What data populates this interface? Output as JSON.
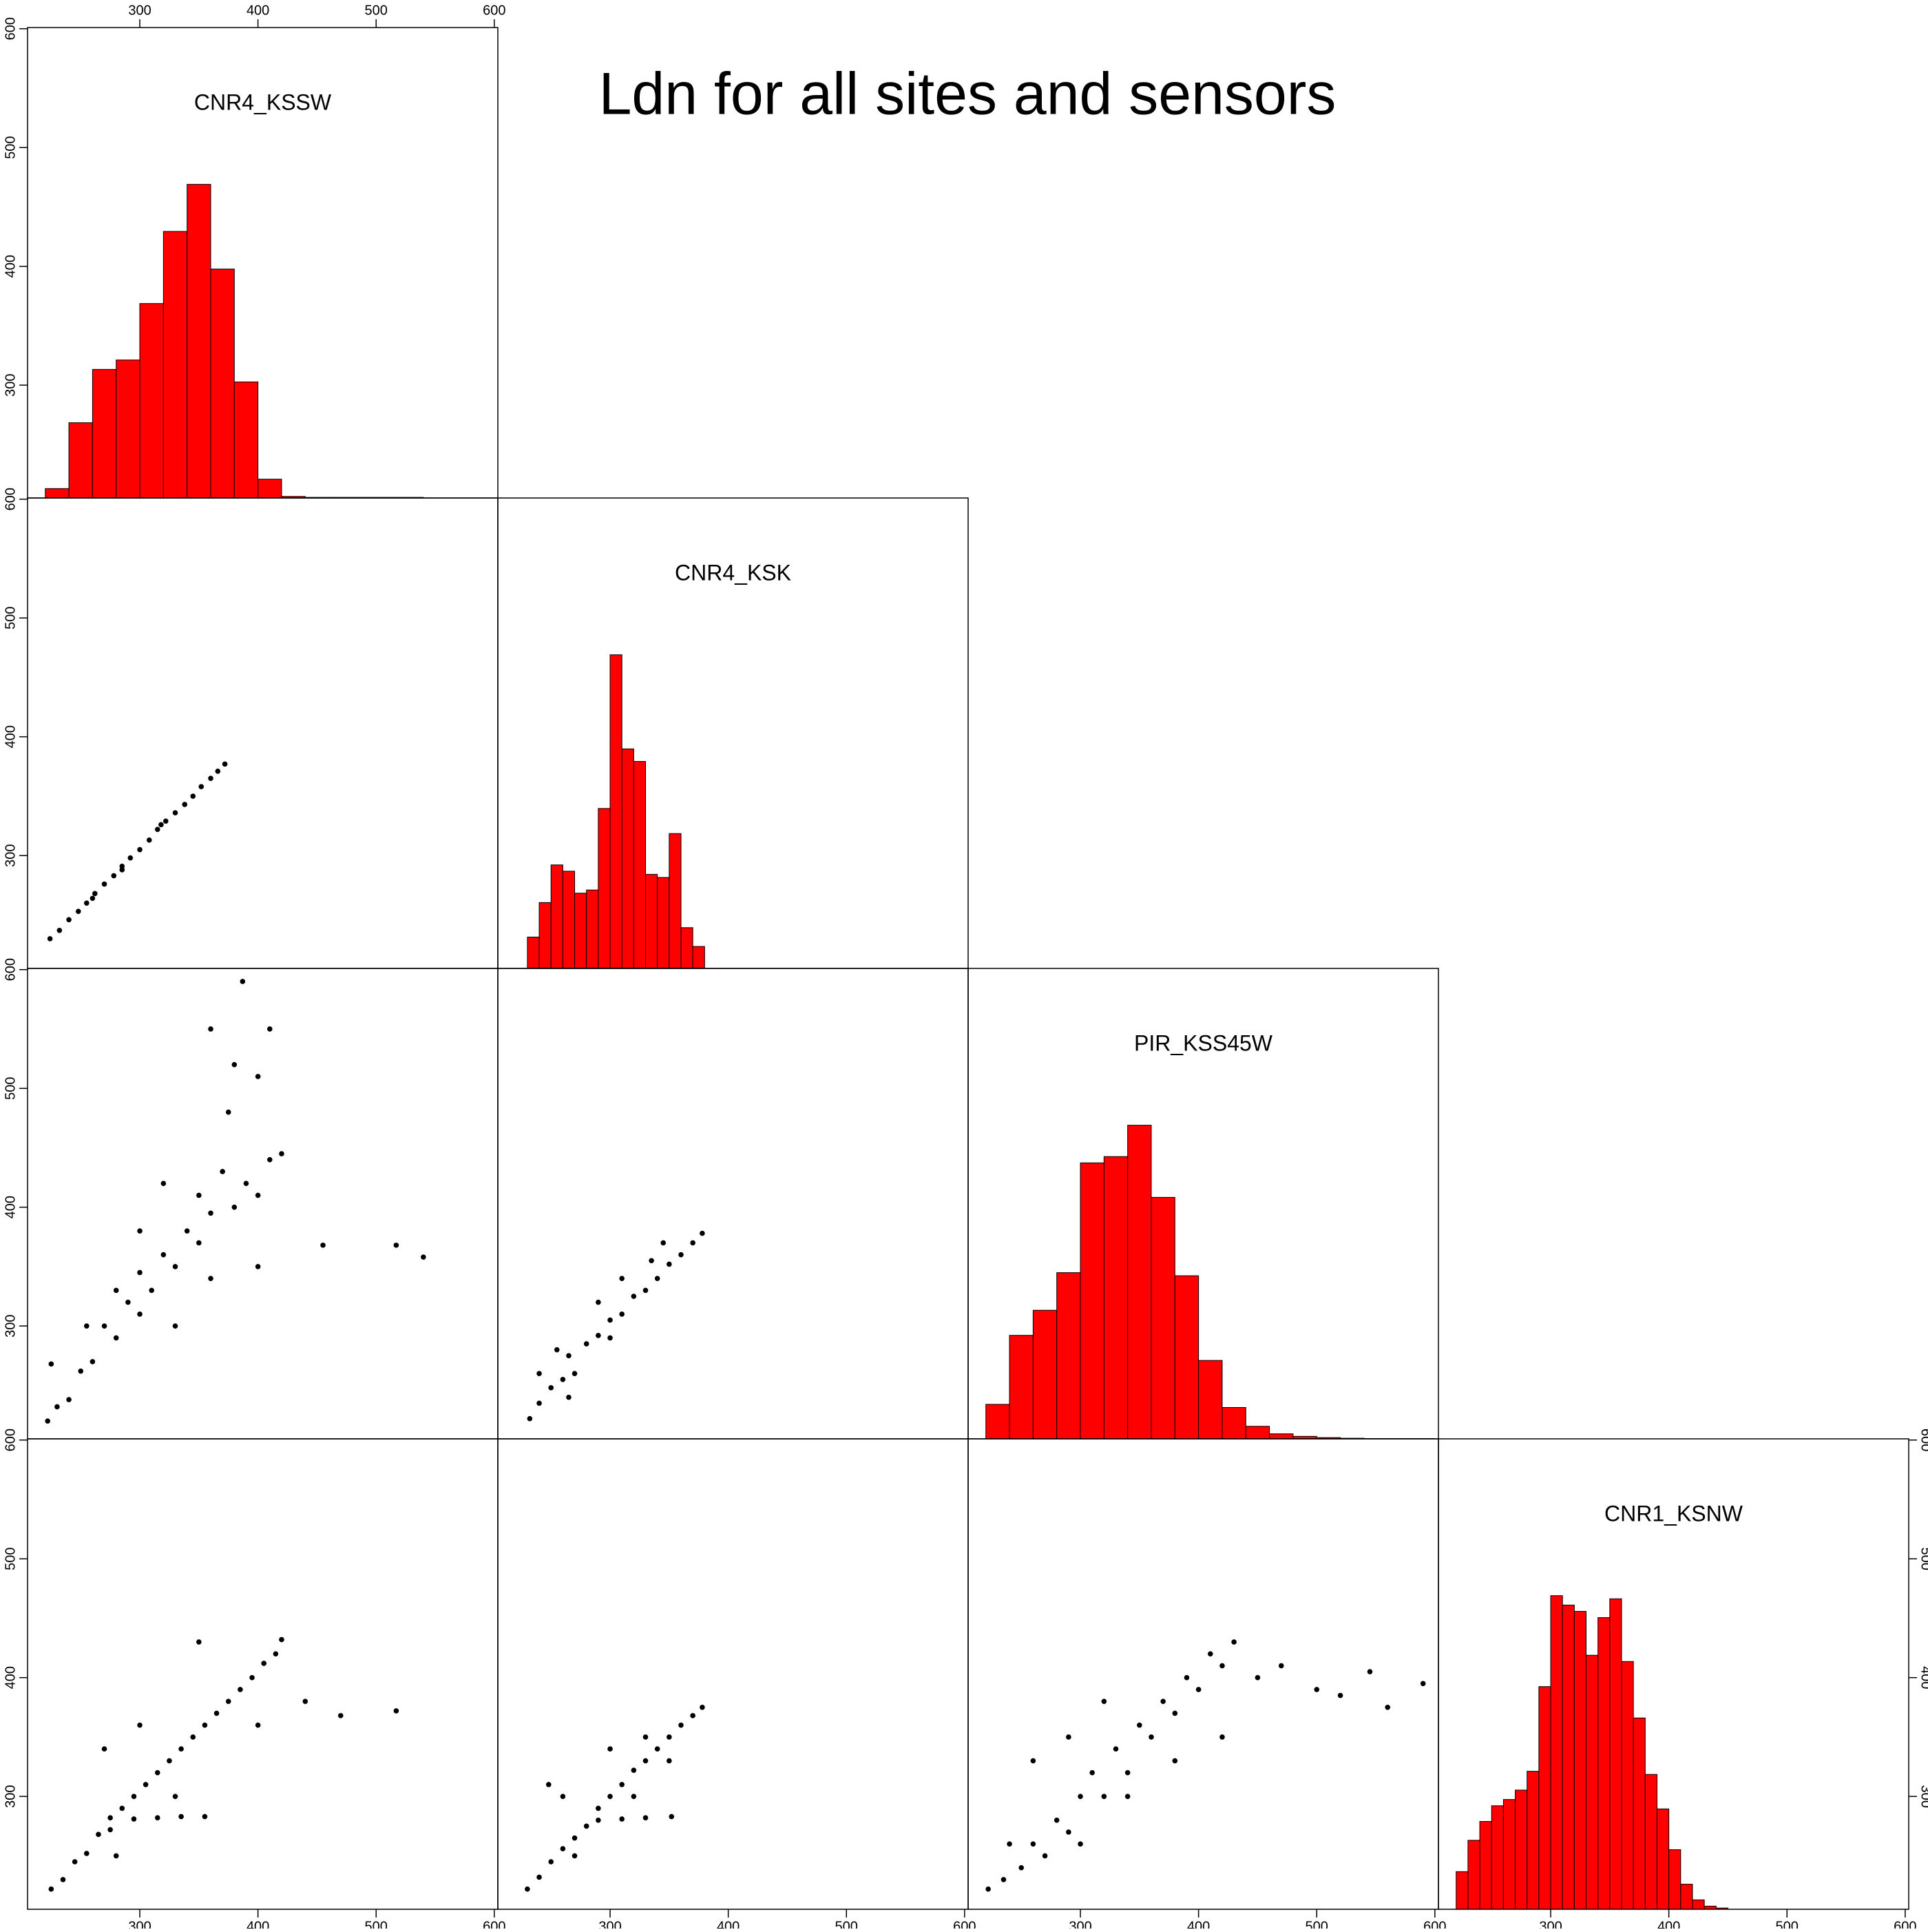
{
  "title": "Ldn for all sites and sensors",
  "chart_data": [
    {
      "type": "histogram",
      "title": "CNR4_KSSW",
      "color": "#ff0000",
      "bins": [
        220,
        240,
        260,
        280,
        300,
        320,
        340,
        360,
        380,
        400,
        420,
        440,
        460,
        480,
        500,
        520,
        540
      ],
      "counts": [
        0.03,
        0.24,
        0.41,
        0.44,
        0.62,
        0.85,
        1,
        0.73,
        0.37,
        0.06,
        0.005,
        0.002,
        0.002,
        0.002,
        0.002,
        0.002
      ],
      "count_lim": [
        0,
        1.5
      ],
      "xlim": [
        205,
        603
      ],
      "ylim": [
        205,
        601
      ],
      "xticks": [
        300,
        400,
        500,
        600
      ],
      "yticks": [
        300,
        400,
        500,
        600
      ]
    },
    {
      "type": "scatter",
      "color": "#000000",
      "x": [
        224,
        232,
        240,
        248,
        255,
        262,
        270,
        278,
        285,
        292,
        300,
        308,
        315,
        322,
        330,
        338,
        345,
        352,
        360,
        366,
        372,
        318,
        285,
        260
      ],
      "y": [
        230,
        237,
        246,
        253,
        260,
        268,
        276,
        283,
        291,
        298,
        305,
        313,
        322,
        329,
        336,
        343,
        350,
        358,
        365,
        371,
        377,
        326,
        288,
        264
      ],
      "xlim": [
        205,
        603
      ],
      "ylim": [
        205,
        601
      ],
      "xticks": [
        300,
        400,
        500,
        600
      ],
      "yticks": [
        300,
        400,
        500,
        600
      ]
    },
    {
      "type": "histogram",
      "title": "CNR4_KSK",
      "color": "#ff0000",
      "bins": [
        230,
        240,
        250,
        260,
        270,
        280,
        290,
        300,
        310,
        320,
        330,
        340,
        350,
        360,
        370,
        380
      ],
      "counts": [
        0.1,
        0.21,
        0.33,
        0.31,
        0.24,
        0.25,
        0.51,
        1,
        0.7,
        0.66,
        0.3,
        0.29,
        0.43,
        0.13,
        0.07
      ],
      "count_lim": [
        0,
        1.5
      ],
      "xlim": [
        205,
        603
      ],
      "ylim": [
        205,
        601
      ],
      "xticks": [
        300,
        400,
        500,
        600
      ],
      "yticks": [
        300,
        400,
        500,
        600
      ]
    },
    {
      "type": "scatter",
      "color": "#000000",
      "x": [
        222,
        230,
        240,
        250,
        260,
        270,
        280,
        290,
        300,
        300,
        310,
        320,
        330,
        340,
        350,
        350,
        360,
        370,
        380,
        390,
        400,
        410,
        420,
        330,
        360,
        280,
        255,
        375,
        387,
        360,
        400,
        455,
        517,
        540,
        225,
        400,
        320,
        300,
        380,
        410
      ],
      "y": [
        220,
        232,
        238,
        262,
        270,
        300,
        290,
        320,
        310,
        345,
        330,
        360,
        350,
        380,
        370,
        410,
        395,
        430,
        400,
        420,
        410,
        440,
        445,
        300,
        340,
        330,
        300,
        480,
        590,
        550,
        510,
        368,
        368,
        358,
        268,
        350,
        420,
        380,
        520,
        550
      ],
      "xlim": [
        205,
        603
      ],
      "ylim": [
        205,
        601
      ],
      "xticks": [
        300,
        400,
        500,
        600
      ],
      "yticks": [
        300,
        400,
        500,
        600
      ]
    },
    {
      "type": "scatter",
      "color": "#000000",
      "x": [
        232,
        240,
        250,
        260,
        265,
        270,
        280,
        290,
        300,
        310,
        320,
        330,
        340,
        350,
        360,
        370,
        378,
        240,
        255,
        290,
        310,
        335,
        300,
        345,
        265
      ],
      "y": [
        222,
        235,
        248,
        255,
        275,
        260,
        285,
        292,
        305,
        310,
        325,
        330,
        340,
        352,
        360,
        370,
        378,
        260,
        280,
        320,
        340,
        355,
        290,
        370,
        240
      ],
      "xlim": [
        205,
        603
      ],
      "ylim": [
        205,
        601
      ],
      "xticks": [
        300,
        400,
        500,
        600
      ],
      "yticks": [
        300,
        400,
        500,
        600
      ]
    },
    {
      "type": "histogram",
      "title": "PIR_KSS45W",
      "color": "#ff0000",
      "bins": [
        220,
        240,
        260,
        280,
        300,
        320,
        340,
        360,
        380,
        400,
        420,
        440,
        460,
        480,
        500,
        520,
        540,
        560,
        580,
        600
      ],
      "counts": [
        0.11,
        0.33,
        0.41,
        0.53,
        0.88,
        0.9,
        1,
        0.77,
        0.52,
        0.25,
        0.1,
        0.04,
        0.016,
        0.008,
        0.004,
        0.002,
        0.001,
        0.001,
        0.001
      ],
      "count_lim": [
        0,
        1.5
      ],
      "xlim": [
        205,
        603
      ],
      "ylim": [
        205,
        601
      ],
      "xticks": [
        300,
        400,
        500,
        600
      ],
      "yticks": [
        300,
        400,
        500,
        600
      ]
    },
    {
      "type": "scatter",
      "color": "#000000",
      "x": [
        225,
        235,
        245,
        255,
        265,
        275,
        285,
        295,
        305,
        315,
        325,
        335,
        345,
        355,
        365,
        375,
        385,
        395,
        405,
        415,
        420,
        275,
        295,
        315,
        335,
        355,
        270,
        300,
        350,
        470,
        517,
        440,
        400,
        280,
        330
      ],
      "y": [
        222,
        230,
        245,
        252,
        268,
        272,
        290,
        300,
        310,
        320,
        330,
        340,
        350,
        360,
        370,
        380,
        390,
        400,
        412,
        420,
        432,
        282,
        281,
        282,
        283,
        283,
        340,
        360,
        430,
        368,
        372,
        380,
        360,
        250,
        300
      ],
      "xlim": [
        205,
        603
      ],
      "ylim": [
        205,
        601
      ],
      "xticks": [
        300,
        400,
        500,
        600
      ],
      "yticks": [
        300,
        400,
        500,
        600
      ]
    },
    {
      "type": "scatter",
      "color": "#000000",
      "x": [
        230,
        240,
        250,
        260,
        270,
        280,
        290,
        300,
        310,
        320,
        330,
        340,
        350,
        360,
        370,
        378,
        290,
        310,
        330,
        352,
        260,
        248,
        300,
        330,
        320,
        350,
        270
      ],
      "y": [
        222,
        232,
        245,
        256,
        265,
        275,
        290,
        300,
        310,
        322,
        330,
        340,
        350,
        360,
        368,
        375,
        280,
        281,
        282,
        283,
        300,
        310,
        340,
        350,
        300,
        330,
        250
      ],
      "xlim": [
        205,
        603
      ],
      "ylim": [
        205,
        601
      ],
      "xticks": [
        300,
        400,
        500,
        600
      ],
      "yticks": [
        300,
        400,
        500,
        600
      ]
    },
    {
      "type": "scatter",
      "color": "#000000",
      "x": [
        222,
        235,
        250,
        260,
        270,
        280,
        290,
        300,
        310,
        320,
        330,
        340,
        350,
        360,
        370,
        380,
        390,
        400,
        410,
        420,
        430,
        450,
        470,
        500,
        520,
        545,
        560,
        590,
        290,
        320,
        260,
        340,
        380,
        420,
        300,
        240
      ],
      "y": [
        222,
        230,
        240,
        260,
        250,
        280,
        270,
        300,
        320,
        300,
        340,
        320,
        360,
        350,
        380,
        370,
        400,
        390,
        420,
        410,
        430,
        400,
        410,
        390,
        385,
        405,
        375,
        395,
        350,
        380,
        330,
        300,
        330,
        350,
        260,
        260
      ],
      "xlim": [
        205,
        603
      ],
      "ylim": [
        205,
        601
      ],
      "xticks": [
        300,
        400,
        500,
        600
      ],
      "yticks": [
        300,
        400,
        500,
        600
      ]
    },
    {
      "type": "histogram",
      "title": "CNR1_KSNW",
      "color": "#ff0000",
      "bins": [
        220,
        230,
        240,
        250,
        260,
        270,
        280,
        290,
        300,
        310,
        320,
        330,
        340,
        350,
        360,
        370,
        380,
        390,
        400,
        410,
        420,
        430,
        440,
        450
      ],
      "counts": [
        0.12,
        0.22,
        0.28,
        0.33,
        0.35,
        0.38,
        0.44,
        0.71,
        1,
        0.97,
        0.95,
        0.81,
        0.93,
        0.99,
        0.79,
        0.61,
        0.43,
        0.32,
        0.19,
        0.08,
        0.03,
        0.01,
        0.004
      ],
      "count_lim": [
        0,
        1.5
      ],
      "xlim": [
        205,
        603
      ],
      "ylim": [
        205,
        601
      ],
      "xticks": [
        300,
        400,
        500,
        600
      ],
      "yticks": [
        300,
        400,
        500,
        600
      ]
    }
  ]
}
